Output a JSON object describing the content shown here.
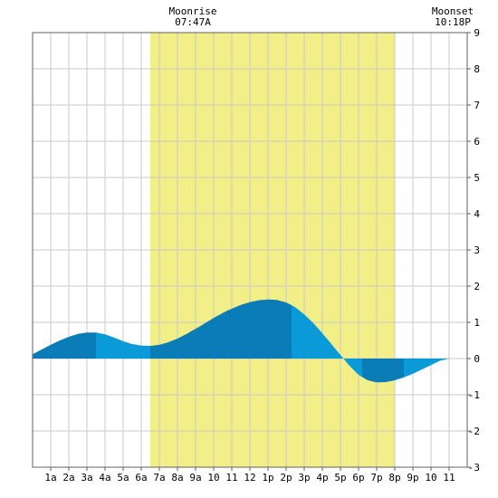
{
  "chart_data": {
    "type": "area",
    "title": "",
    "xlabel": "",
    "ylabel": "",
    "x_ticks": [
      "1a",
      "2a",
      "3a",
      "4a",
      "5a",
      "6a",
      "7a",
      "8a",
      "9a",
      "10",
      "11",
      "12",
      "1p",
      "2p",
      "3p",
      "4p",
      "5p",
      "6p",
      "7p",
      "8p",
      "9p",
      "10",
      "11"
    ],
    "xlim_hours": [
      0,
      24
    ],
    "ylim": [
      -3,
      9
    ],
    "y_ticks": [
      -3,
      -2,
      -1,
      0,
      1,
      2,
      3,
      4,
      5,
      6,
      7,
      8,
      9
    ],
    "grid": true,
    "daylight_hours": [
      6.5,
      20.0
    ],
    "series": [
      {
        "x_hours": [
          0,
          0.5,
          1,
          1.5,
          2,
          2.5,
          3,
          3.5,
          4,
          4.5,
          5,
          5.5,
          6,
          6.5,
          7,
          7.5,
          8,
          8.5,
          9,
          9.5,
          10,
          10.5,
          11,
          11.5,
          12,
          12.5,
          13,
          13.5,
          14,
          14.5,
          15,
          15.5,
          16,
          16.5,
          17,
          17.5,
          18,
          18.5,
          19,
          19.5,
          20,
          20.5,
          21,
          21.5,
          22,
          22.5,
          23,
          23.5,
          24
        ],
        "values": [
          0.12,
          0.25,
          0.38,
          0.5,
          0.6,
          0.68,
          0.72,
          0.72,
          0.67,
          0.58,
          0.48,
          0.4,
          0.36,
          0.35,
          0.38,
          0.45,
          0.55,
          0.68,
          0.82,
          0.97,
          1.12,
          1.26,
          1.38,
          1.48,
          1.56,
          1.61,
          1.63,
          1.62,
          1.55,
          1.42,
          1.22,
          0.98,
          0.7,
          0.4,
          0.1,
          -0.2,
          -0.45,
          -0.6,
          -0.66,
          -0.65,
          -0.6,
          -0.52,
          -0.42,
          -0.3,
          -0.18,
          -0.06,
          0.0,
          0.0,
          0.0
        ]
      }
    ],
    "shading_breaks_hours": [
      3.5,
      6.5,
      14.3,
      18.2,
      20.5
    ],
    "annotations": [
      {
        "label": "Moonrise",
        "time": "07:47A",
        "hour": 7.78
      },
      {
        "label": "Moonset",
        "time": "10:18P",
        "hour": 22.3
      }
    ],
    "colors": {
      "grid": "#c8c8c8",
      "daylight": "#f2ee88",
      "tide_dark": "#0a7db8",
      "tide_light": "#0a9ad8",
      "frame": "#606060"
    }
  }
}
